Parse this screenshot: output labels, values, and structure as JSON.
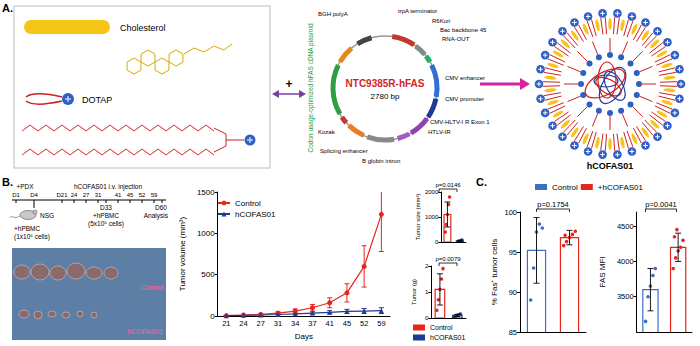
{
  "panels": {
    "a": {
      "label": "A.",
      "lipids": [
        "Cholesterol",
        "DOTAP"
      ],
      "combine": "+",
      "plasmid": {
        "name": "NTC9385R-hFAS",
        "size": "2780 bp",
        "insert": "Codon usage-optimized hFAS cDNA plasmid",
        "features": [
          "BGH polyA",
          "trpA terminator",
          "R6Kori",
          "Bac backbone 45",
          "RNA-OUT",
          "CMV enhancer",
          "CMV promoter",
          "CMV-HLTV-I R Exon 1",
          "HTLV-IR",
          "B globin intron",
          "Splicing enhancer",
          "Kozak"
        ]
      },
      "product": "hCOFAS01"
    },
    "b": {
      "label": "B.",
      "schedule": {
        "pdx": "+PDX",
        "days_top": [
          "D1",
          "D4"
        ],
        "injection_days": [
          "D21",
          "24",
          "27",
          "31",
          "41",
          "45",
          "52",
          "59"
        ],
        "injection": "hCOFAS01 i.v. injection",
        "mouse": "NSG",
        "pbmc1": [
          "+hPBMC",
          "(1x10⁶ cells)"
        ],
        "pbmc2": [
          "D33",
          "+hPBMC",
          "(5x10⁶ cells)"
        ],
        "end": [
          "D60",
          "Analysis"
        ]
      },
      "photo_labels": [
        "Control",
        "hCOFAS01"
      ]
    },
    "c": {
      "label": "C."
    }
  },
  "chart_data": [
    {
      "type": "line",
      "x_label": "Days",
      "y_label": "Tumor volume (mm³)",
      "categories": [
        "21",
        "24",
        "27",
        "31",
        "34",
        "37",
        "41",
        "45",
        "52",
        "59"
      ],
      "ylim": [
        0,
        1500
      ],
      "yticks": [
        0,
        500,
        1000,
        1500
      ],
      "legend": "upper left",
      "series": [
        {
          "name": "Control",
          "color": "#e8251c",
          "marker": "circle",
          "values": [
            5,
            12,
            20,
            35,
            60,
            100,
            160,
            280,
            600,
            1230
          ],
          "errors": [
            3,
            6,
            10,
            15,
            25,
            40,
            60,
            110,
            250,
            450
          ]
        },
        {
          "name": "hCOFAS01",
          "color": "#1f3a93",
          "marker": "triangle",
          "values": [
            4,
            8,
            12,
            18,
            25,
            35,
            45,
            55,
            60,
            65
          ],
          "errors": [
            2,
            4,
            6,
            8,
            10,
            15,
            20,
            25,
            30,
            35
          ]
        }
      ]
    },
    {
      "type": "bar",
      "y_label": "Tumor size (mm³)",
      "categories": [
        null,
        null
      ],
      "values": [
        1100,
        40
      ],
      "errors": [
        500,
        30
      ],
      "colors": [
        "#e8251c",
        "#1f3a93"
      ],
      "points": [
        [
          400,
          700,
          1100,
          1500,
          1800
        ],
        [
          0,
          20,
          40,
          60,
          80
        ]
      ],
      "ylim": [
        0,
        2000
      ],
      "yticks": [
        0,
        1000,
        2000
      ],
      "annotation": "p=0.0146"
    },
    {
      "type": "bar",
      "y_label": "Tumor (g)",
      "categories": [
        null
      ],
      "ylim": [
        0,
        2
      ],
      "yticks": [
        0,
        1,
        2
      ],
      "annotation": "p=0.0079",
      "legend": "bottom",
      "series": [
        {
          "name": "Control",
          "color": "#e8251c",
          "values": [
            1.1
          ],
          "errors": [
            0.6
          ],
          "points": [
            [
              0.3,
              0.7,
              1.1,
              1.5,
              1.9
            ]
          ]
        },
        {
          "name": "hCOFAS01",
          "color": "#1f3a93",
          "values": [
            0.1
          ],
          "errors": [
            0.04
          ],
          "points": [
            [
              0.05,
              0.08,
              0.1,
              0.12,
              0.15
            ]
          ]
        }
      ]
    },
    {
      "type": "bar",
      "y_label": "% Fas⁺ tumor cells",
      "categories": [
        null
      ],
      "ylim": [
        85,
        100
      ],
      "yticks": [
        85,
        90,
        95,
        100
      ],
      "annotation": "p=0.1754",
      "legend": "top",
      "series": [
        {
          "name": "Control",
          "color": "#3a6fc4",
          "values": [
            95.2
          ],
          "errors": [
            4.1
          ],
          "points": [
            [
              89,
              93,
              97.5,
              98.5,
              98
            ]
          ]
        },
        {
          "name": "+hCOFAS01",
          "color": "#e8251c",
          "values": [
            96.8
          ],
          "errors": [
            0.9
          ],
          "points": [
            [
              95.8,
              96.3,
              96.8,
              97.2,
              97.6,
              97.1
            ]
          ]
        }
      ]
    },
    {
      "type": "bar",
      "y_label": "FAS MFI",
      "categories": [
        null
      ],
      "ylim": [
        3000,
        4700
      ],
      "yticks": [
        3500,
        4000,
        4500
      ],
      "annotation": "p=0.0041",
      "series": [
        {
          "name": "Control",
          "color": "#3a6fc4",
          "values": [
            3600
          ],
          "errors": [
            300
          ],
          "points": [
            [
              3150,
              3500,
              3650,
              3800,
              3900
            ]
          ]
        },
        {
          "name": "+hCOFAS01",
          "color": "#e8251c",
          "values": [
            4200
          ],
          "errors": [
            200
          ],
          "points": [
            [
              3900,
              4050,
              4150,
              4200,
              4300,
              4350,
              4450
            ]
          ]
        }
      ]
    }
  ]
}
